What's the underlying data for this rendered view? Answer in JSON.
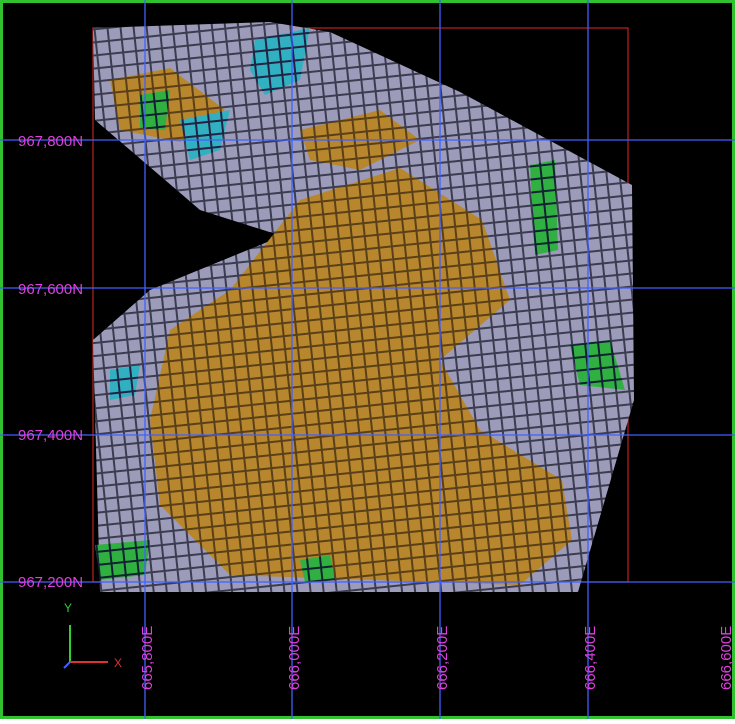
{
  "grid_labels": {
    "northings": [
      "967,800N",
      "967,600N",
      "967,400N",
      "967,200N"
    ],
    "eastings": [
      "665,800E",
      "666,000E",
      "666,200E",
      "666,400E",
      "666,600E"
    ]
  },
  "axis_triad": {
    "y": "Y",
    "x": "X"
  }
}
